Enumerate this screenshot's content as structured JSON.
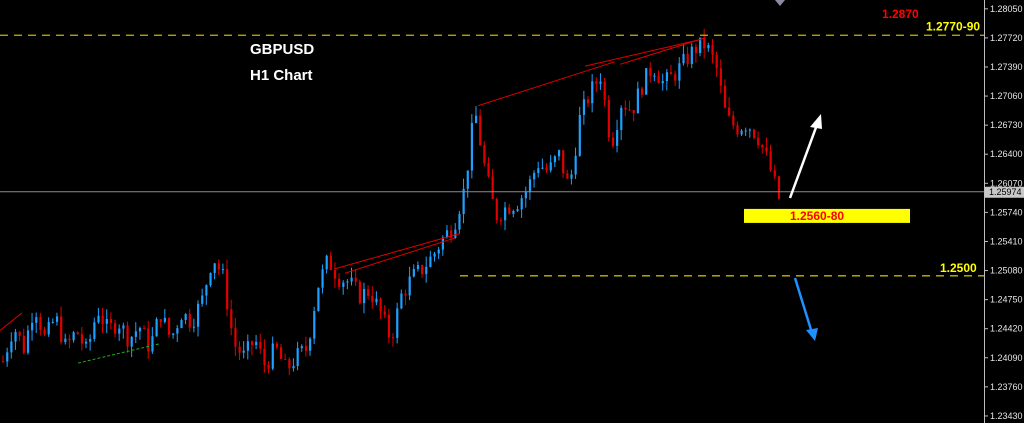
{
  "chart_data": {
    "type": "candlestick",
    "symbol": "GBPUSD",
    "timeframe": "H1 Chart",
    "ylim": [
      1.2335,
      1.2815
    ],
    "y_ticks": [
      "1.28050",
      "1.27720",
      "1.27390",
      "1.27060",
      "1.26730",
      "1.26400",
      "1.26070",
      "1.25740",
      "1.25410",
      "1.25080",
      "1.24750",
      "1.24420",
      "1.24090",
      "1.23760",
      "1.23430"
    ],
    "current_price": "1.25974",
    "current_price_value": 1.25974,
    "levels": [
      {
        "name": "resistance",
        "label": "1.2770-90",
        "value": 1.2775,
        "color": "#c9b400",
        "label_color": "#ffff00"
      },
      {
        "name": "support-1",
        "label": "1.2560-80",
        "value": 1.257,
        "color": "#ffff00",
        "label_color": "#ff0000",
        "box": true
      },
      {
        "name": "support-2",
        "label": "1.2500",
        "value": 1.2502,
        "color": "#c9b400",
        "label_color": "#ffff00"
      },
      {
        "name": "target-top",
        "label": "1.2870",
        "color": "#ff0000"
      }
    ],
    "arrows": [
      {
        "name": "bullish-arrow",
        "direction": "up",
        "color": "#ffffff"
      },
      {
        "name": "bearish-arrow",
        "direction": "down",
        "color": "#1e90ff"
      }
    ],
    "path": [
      1.2405,
      1.2445,
      1.242,
      1.247,
      1.243,
      1.2455,
      1.242,
      1.244,
      1.2415,
      1.2465,
      1.244,
      1.245,
      1.243,
      1.2445,
      1.242,
      1.246,
      1.243,
      1.246,
      1.245,
      1.2475,
      1.2525,
      1.25,
      1.2425,
      1.241,
      1.243,
      1.24,
      1.242,
      1.2395,
      1.241,
      1.242,
      1.249,
      1.252,
      1.25,
      1.2495,
      1.248,
      1.2485,
      1.246,
      1.243,
      1.248,
      1.25,
      1.251,
      1.2525,
      1.2545,
      1.256,
      1.26,
      1.269,
      1.262,
      1.257,
      1.258,
      1.2585,
      1.26,
      1.263,
      1.262,
      1.264,
      1.26,
      1.268,
      1.271,
      1.273,
      1.265,
      1.27,
      1.269,
      1.272,
      1.274,
      1.272,
      1.273,
      1.2745,
      1.276,
      1.2765,
      1.274,
      1.268,
      1.267,
      1.2675,
      1.266,
      1.263,
      1.259
    ]
  }
}
